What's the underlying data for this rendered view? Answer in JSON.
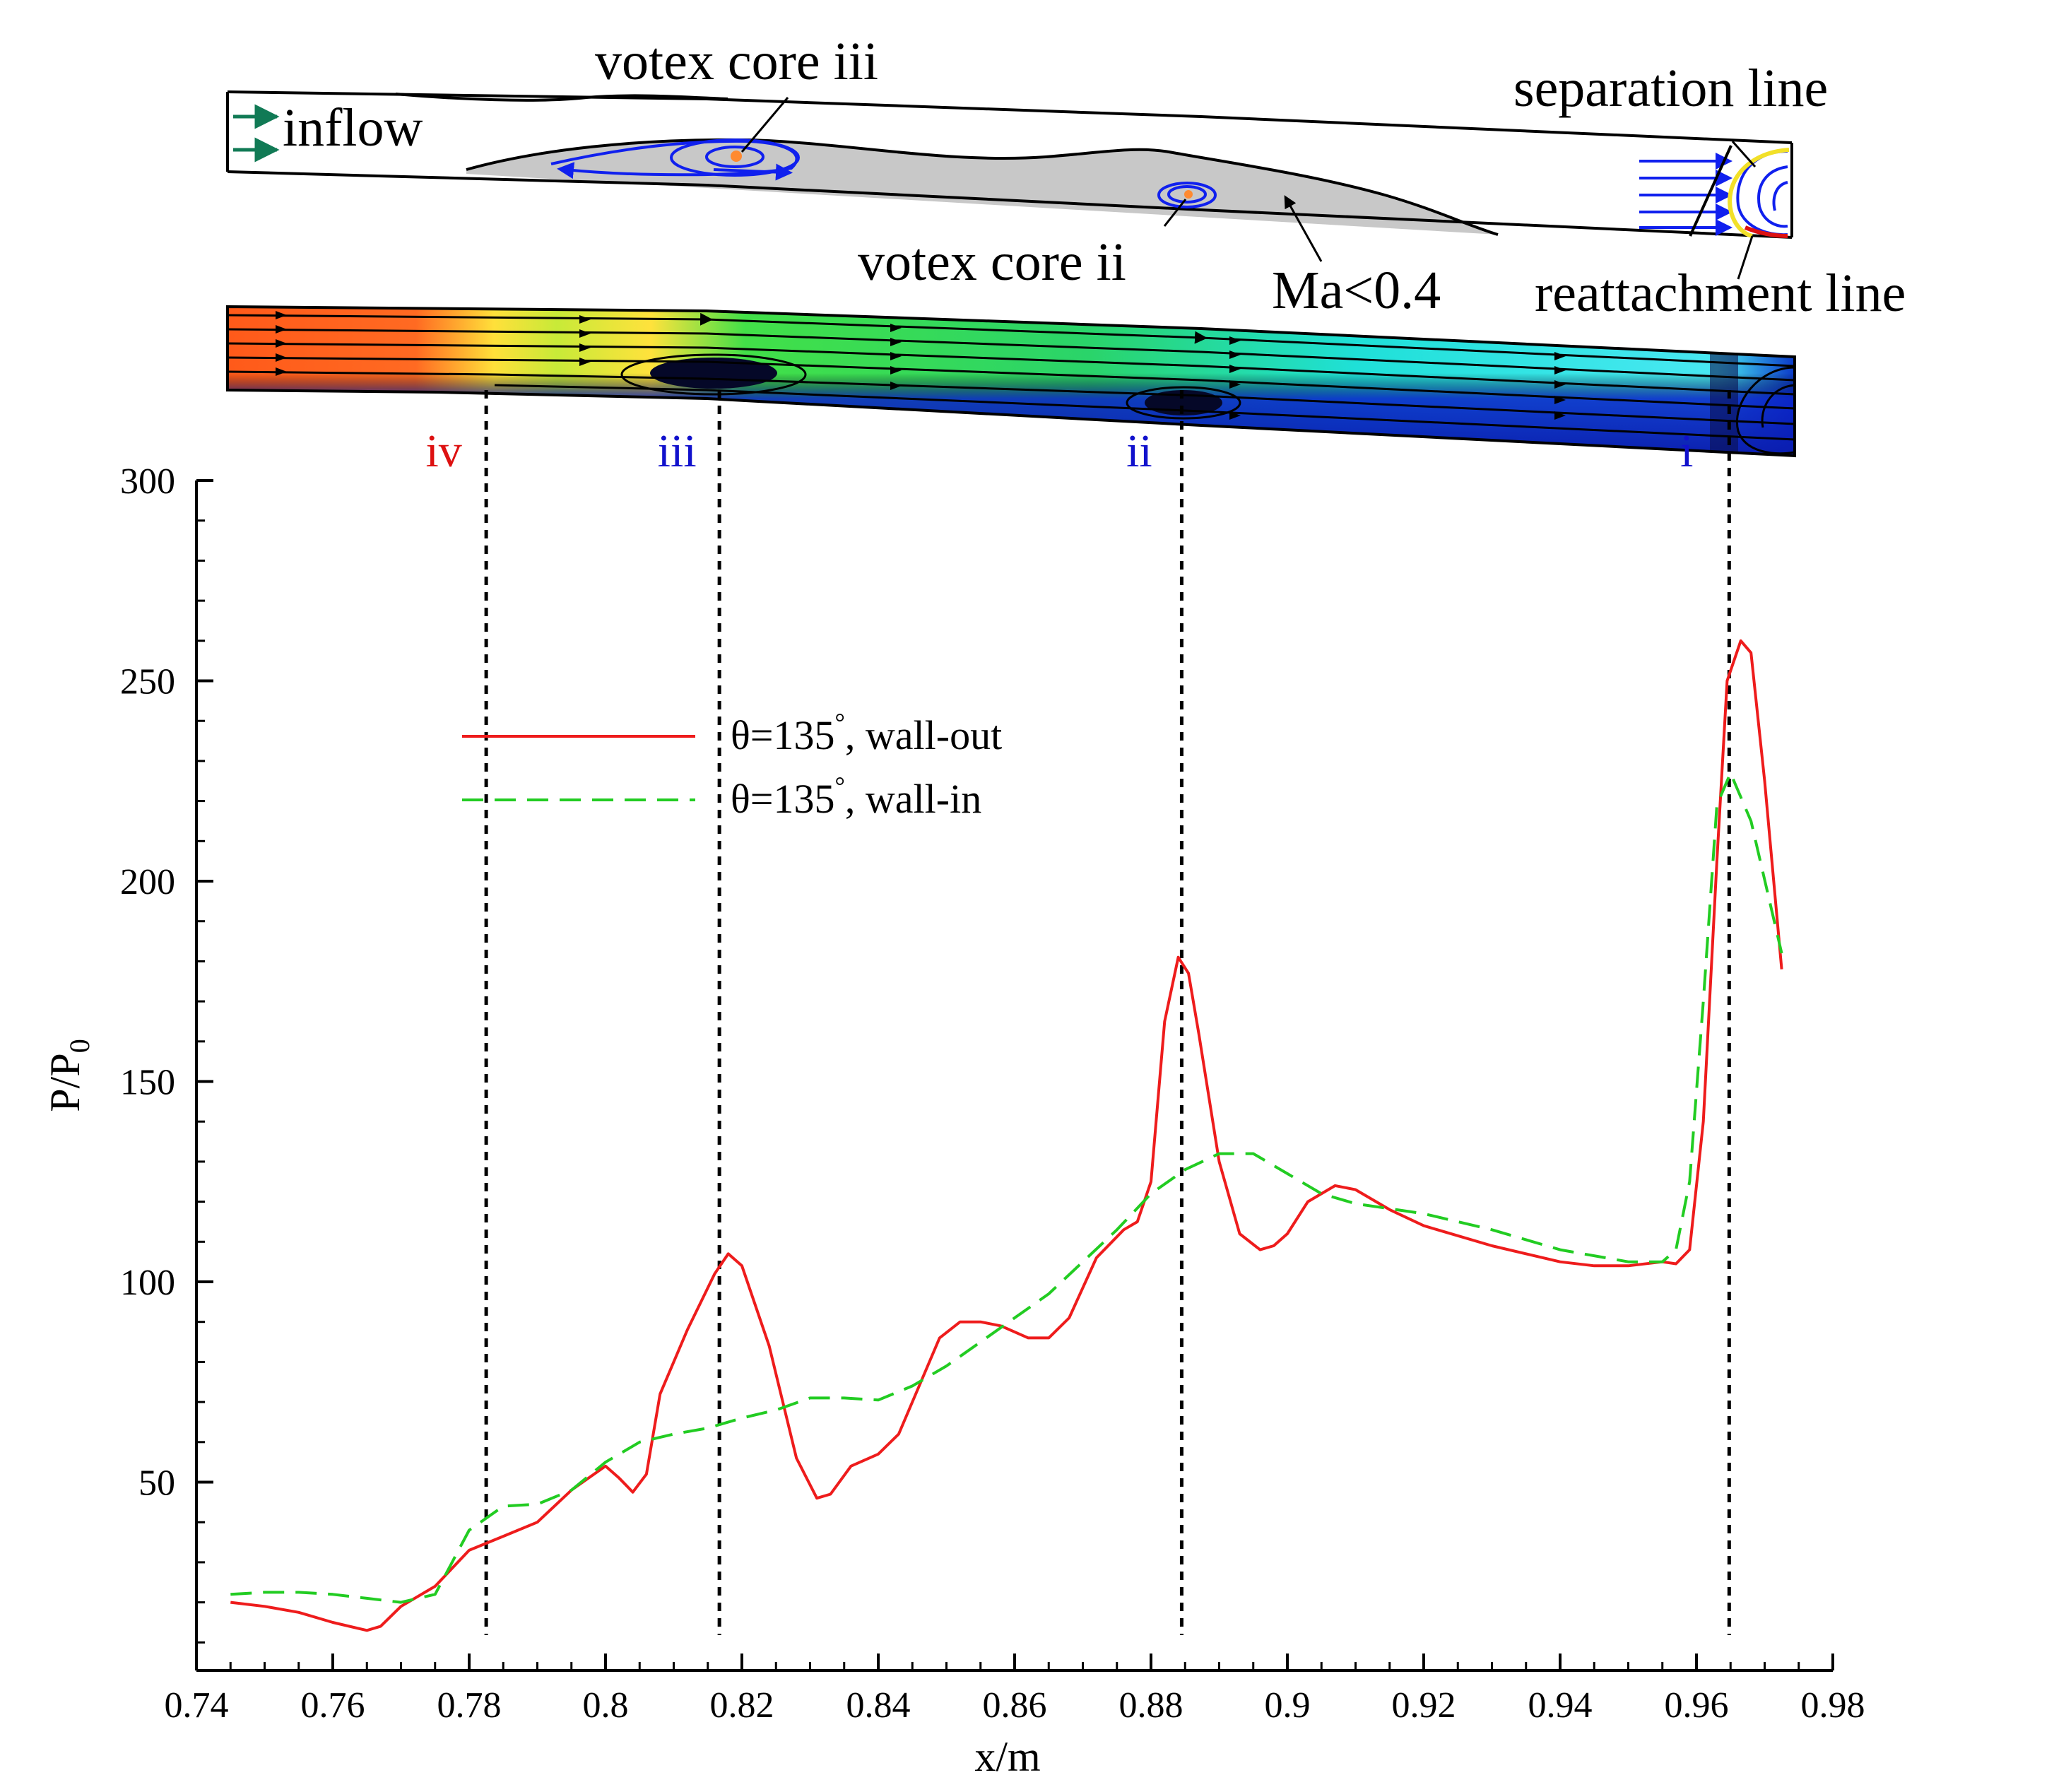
{
  "diagram": {
    "inflow_label": "inflow",
    "votex_core_iii_label": "votex core iii",
    "votex_core_ii_label": "votex core ii",
    "ma_label": "Ma<0.4",
    "separation_label": "separation line",
    "reattachment_label": "reattachment line"
  },
  "markers": [
    {
      "label": "iv",
      "x": 0.7825,
      "color": "#dd1111"
    },
    {
      "label": "iii",
      "x": 0.8167,
      "color": "#1111cc"
    },
    {
      "label": "ii",
      "x": 0.8845,
      "color": "#1111cc"
    },
    {
      "label": "i",
      "x": 0.9648,
      "color": "#1111cc"
    }
  ],
  "chart_data": {
    "type": "line",
    "xlabel": "x/m",
    "ylabel_main": "P/P",
    "ylabel_sub": "0",
    "xlim": [
      0.74,
      0.98
    ],
    "ylim": [
      0,
      300
    ],
    "plot_ymin": 3,
    "xticks": [
      0.74,
      0.76,
      0.78,
      0.8,
      0.82,
      0.84,
      0.86,
      0.88,
      0.9,
      0.92,
      0.94,
      0.96,
      0.98
    ],
    "xtick_labels": [
      "0.74",
      "0.76",
      "0.78",
      "0.8",
      "0.82",
      "0.84",
      "0.86",
      "0.88",
      "0.9",
      "0.92",
      "0.94",
      "0.96",
      "0.98"
    ],
    "yticks": [
      50,
      100,
      150,
      200,
      250,
      300
    ],
    "ytick_labels": [
      "50",
      "100",
      "150",
      "200",
      "250",
      "300"
    ],
    "series": [
      {
        "name": "θ=135°, wall-out",
        "legend_main": "θ=135",
        "legend_tail": ", wall-out",
        "color": "#ee1c1c",
        "dash": "solid",
        "x": [
          0.745,
          0.75,
          0.755,
          0.76,
          0.765,
          0.767,
          0.77,
          0.775,
          0.78,
          0.785,
          0.79,
          0.795,
          0.8,
          0.802,
          0.804,
          0.806,
          0.808,
          0.812,
          0.816,
          0.818,
          0.82,
          0.824,
          0.828,
          0.831,
          0.833,
          0.836,
          0.84,
          0.843,
          0.846,
          0.849,
          0.852,
          0.855,
          0.858,
          0.862,
          0.865,
          0.868,
          0.872,
          0.876,
          0.878,
          0.88,
          0.882,
          0.884,
          0.8855,
          0.887,
          0.89,
          0.893,
          0.896,
          0.898,
          0.9,
          0.903,
          0.907,
          0.91,
          0.915,
          0.92,
          0.93,
          0.94,
          0.945,
          0.95,
          0.955,
          0.957,
          0.959,
          0.961,
          0.963,
          0.9645,
          0.9665,
          0.968,
          0.97,
          0.9725
        ],
        "y": [
          20,
          19,
          17.5,
          15,
          13,
          14,
          19,
          24,
          33,
          36.5,
          40,
          48,
          54,
          51,
          47.5,
          52,
          72,
          88,
          102,
          107,
          104,
          84,
          56,
          46,
          47,
          54,
          57,
          62,
          74,
          86,
          90,
          90,
          89,
          86,
          86,
          91,
          106,
          113,
          115,
          125,
          165,
          181,
          177,
          162,
          130,
          112,
          108,
          109,
          112,
          120,
          124,
          123,
          118,
          114,
          109,
          105,
          104,
          104,
          105,
          104.5,
          108,
          140,
          205,
          250,
          260,
          257,
          225,
          178
        ]
      },
      {
        "name": "θ=135°, wall-in",
        "legend_main": "θ=135",
        "legend_tail": ", wall-in",
        "color": "#22cc22",
        "dash": "dashed",
        "x": [
          0.745,
          0.75,
          0.755,
          0.76,
          0.765,
          0.77,
          0.775,
          0.78,
          0.785,
          0.79,
          0.795,
          0.8,
          0.805,
          0.81,
          0.815,
          0.82,
          0.825,
          0.83,
          0.835,
          0.84,
          0.845,
          0.85,
          0.855,
          0.86,
          0.865,
          0.87,
          0.875,
          0.88,
          0.885,
          0.89,
          0.895,
          0.9,
          0.905,
          0.91,
          0.92,
          0.93,
          0.94,
          0.95,
          0.955,
          0.957,
          0.959,
          0.961,
          0.963,
          0.965,
          0.968,
          0.9725
        ],
        "y": [
          22,
          22.5,
          22.5,
          22,
          21,
          20,
          22,
          38,
          44,
          44.5,
          48,
          55,
          60,
          62,
          63.5,
          66,
          68,
          71,
          71,
          70.5,
          74,
          79,
          85,
          91,
          97,
          105,
          113,
          122,
          128,
          132,
          132,
          127,
          122,
          119.5,
          117,
          113,
          108,
          105,
          105,
          108,
          125,
          170,
          219,
          227,
          215,
          182
        ]
      }
    ]
  }
}
